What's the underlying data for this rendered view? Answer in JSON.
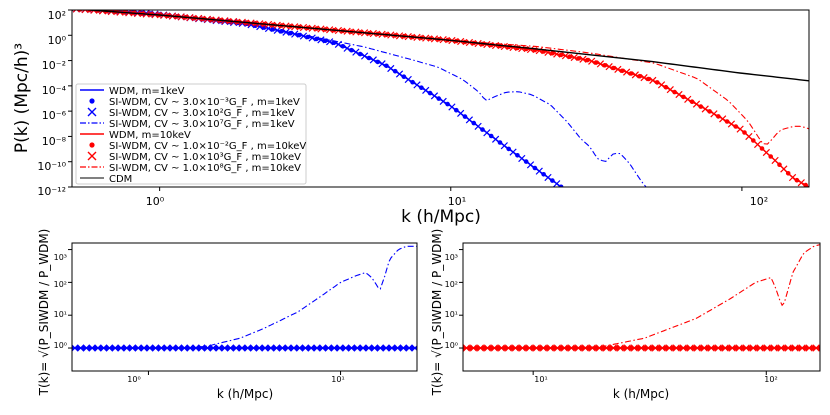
{
  "chart_data": [
    {
      "type": "line",
      "panel": "top",
      "title": "",
      "xlabel": "k (h/Mpc)",
      "ylabel": "P(k) (Mpc/h)³",
      "xscale": "log",
      "yscale": "log",
      "xlim": [
        0.5,
        170
      ],
      "ylim_exp": [
        -12,
        2
      ],
      "x_ticks": [
        {
          "v": 1,
          "label": "10⁰"
        },
        {
          "v": 10,
          "label": "10¹"
        },
        {
          "v": 100,
          "label": "10²"
        }
      ],
      "y_ticks": [
        {
          "e": 2,
          "label": "10²"
        },
        {
          "e": 0,
          "label": "10⁰"
        },
        {
          "e": -2,
          "label": "10⁻²"
        },
        {
          "e": -4,
          "label": "10⁻⁴"
        },
        {
          "e": -6,
          "label": "10⁻⁶"
        },
        {
          "e": -8,
          "label": "10⁻⁸"
        },
        {
          "e": -10,
          "label": "10⁻¹⁰"
        },
        {
          "e": -12,
          "label": "10⁻¹²"
        }
      ],
      "legend_position": "center-left",
      "series": [
        {
          "name": "WDM, m=1keV",
          "color": "#0000ff",
          "style": "solid",
          "marker": "none",
          "points": [
            [
              0.5,
              2.1
            ],
            [
              0.9,
              1.75
            ],
            [
              2,
              0.9
            ],
            [
              4,
              -0.6
            ],
            [
              6,
              -2.4
            ],
            [
              10,
              -5.6
            ],
            [
              15,
              -8.6
            ],
            [
              20,
              -10.7
            ],
            [
              25,
              -12.3
            ]
          ]
        },
        {
          "name": "SI-WDM, CV ~ 3.0×10⁻³G_F , m=1keV",
          "color": "#0000ff",
          "style": "none",
          "marker": "dot",
          "points": [
            [
              0.5,
              2.1
            ],
            [
              0.9,
              1.75
            ],
            [
              2,
              0.9
            ],
            [
              4,
              -0.6
            ],
            [
              6,
              -2.4
            ],
            [
              10,
              -5.6
            ],
            [
              15,
              -8.6
            ],
            [
              20,
              -10.7
            ],
            [
              25,
              -12.3
            ]
          ]
        },
        {
          "name": "SI-WDM, CV ~ 3.0×10²G_F , m=1keV",
          "color": "#0000ff",
          "style": "none",
          "marker": "x",
          "points": [
            [
              0.5,
              2.1
            ],
            [
              0.9,
              1.75
            ],
            [
              2,
              0.9
            ],
            [
              4,
              -0.6
            ],
            [
              6,
              -2.4
            ],
            [
              10,
              -5.6
            ],
            [
              15,
              -8.6
            ],
            [
              20,
              -10.7
            ],
            [
              25,
              -12.3
            ]
          ]
        },
        {
          "name": "SI-WDM, CV ~ 3.0×10⁷G_F , m=1keV",
          "color": "#0000ff",
          "style": "dashdot",
          "marker": "none",
          "points": [
            [
              0.5,
              2.1
            ],
            [
              1,
              1.65
            ],
            [
              2,
              0.9
            ],
            [
              3,
              0.1
            ],
            [
              5,
              -0.9
            ],
            [
              7,
              -1.8
            ],
            [
              9,
              -2.5
            ],
            [
              11,
              -3.5
            ],
            [
              12.5,
              -4.5
            ],
            [
              13.2,
              -5.2
            ],
            [
              14,
              -4.9
            ],
            [
              15.5,
              -4.5
            ],
            [
              17,
              -4.45
            ],
            [
              19,
              -4.7
            ],
            [
              22,
              -5.5
            ],
            [
              25,
              -6.8
            ],
            [
              28,
              -8.2
            ],
            [
              30,
              -8.8
            ],
            [
              32,
              -9.8
            ],
            [
              34,
              -10.0
            ],
            [
              36,
              -9.4
            ],
            [
              38,
              -9.3
            ],
            [
              41,
              -10.1
            ],
            [
              45,
              -11.5
            ],
            [
              48,
              -12.3
            ]
          ]
        },
        {
          "name": "WDM, m=10keV",
          "color": "#ff0000",
          "style": "solid",
          "marker": "none",
          "points": [
            [
              0.5,
              2.1
            ],
            [
              1,
              1.6
            ],
            [
              2,
              1.0
            ],
            [
              4,
              0.4
            ],
            [
              6,
              0.05
            ],
            [
              10,
              -0.4
            ],
            [
              20,
              -1.2
            ],
            [
              30,
              -2.0
            ],
            [
              50,
              -3.6
            ],
            [
              80,
              -6.2
            ],
            [
              100,
              -7.5
            ],
            [
              130,
              -9.9
            ],
            [
              150,
              -11.3
            ],
            [
              170,
              -12.0
            ]
          ]
        },
        {
          "name": "SI-WDM, CV ~ 1.0×10⁻²G_F , m=10keV",
          "color": "#ff0000",
          "style": "none",
          "marker": "dot",
          "points": [
            [
              0.5,
              2.1
            ],
            [
              1,
              1.6
            ],
            [
              2,
              1.0
            ],
            [
              4,
              0.4
            ],
            [
              6,
              0.05
            ],
            [
              10,
              -0.4
            ],
            [
              20,
              -1.2
            ],
            [
              30,
              -2.0
            ],
            [
              50,
              -3.6
            ],
            [
              80,
              -6.2
            ],
            [
              100,
              -7.5
            ],
            [
              130,
              -9.9
            ],
            [
              150,
              -11.3
            ],
            [
              170,
              -12.0
            ]
          ]
        },
        {
          "name": "SI-WDM, CV ~ 1.0×10³G_F , m=10keV",
          "color": "#ff0000",
          "style": "none",
          "marker": "x",
          "points": [
            [
              0.5,
              2.1
            ],
            [
              1,
              1.6
            ],
            [
              2,
              1.0
            ],
            [
              4,
              0.4
            ],
            [
              6,
              0.05
            ],
            [
              10,
              -0.4
            ],
            [
              20,
              -1.2
            ],
            [
              30,
              -2.0
            ],
            [
              50,
              -3.6
            ],
            [
              80,
              -6.2
            ],
            [
              100,
              -7.5
            ],
            [
              130,
              -9.9
            ],
            [
              150,
              -11.3
            ],
            [
              170,
              -12.0
            ]
          ]
        },
        {
          "name": "SI-WDM, CV ~ 1.0×10⁸G_F , m=10keV",
          "color": "#ff0000",
          "style": "dashdot",
          "marker": "none",
          "points": [
            [
              0.5,
              2.1
            ],
            [
              1,
              1.6
            ],
            [
              2,
              1.0
            ],
            [
              5,
              0.25
            ],
            [
              10,
              -0.4
            ],
            [
              20,
              -0.9
            ],
            [
              30,
              -1.4
            ],
            [
              50,
              -2.2
            ],
            [
              70,
              -3.4
            ],
            [
              90,
              -5.2
            ],
            [
              105,
              -6.8
            ],
            [
              115,
              -8.2
            ],
            [
              120,
              -8.8
            ],
            [
              125,
              -8.4
            ],
            [
              135,
              -7.5
            ],
            [
              150,
              -7.2
            ],
            [
              160,
              -7.2
            ],
            [
              170,
              -7.4
            ]
          ]
        },
        {
          "name": "CDM",
          "color": "#000000",
          "style": "solid",
          "marker": "none",
          "points": [
            [
              0.5,
              2.1
            ],
            [
              1,
              1.6
            ],
            [
              2,
              1.0
            ],
            [
              4,
              0.4
            ],
            [
              10,
              -0.4
            ],
            [
              20,
              -1.1
            ],
            [
              50,
              -2.1
            ],
            [
              100,
              -3.0
            ],
            [
              170,
              -3.6
            ]
          ]
        }
      ]
    },
    {
      "type": "line",
      "panel": "bottom-left",
      "xlabel": "k (h/Mpc)",
      "ylabel": "T(k)= √(P_SIWDM / P_WDM)",
      "xscale": "log",
      "yscale": "log",
      "xlim": [
        0.4,
        25
      ],
      "ylim_exp": [
        -0.7,
        3.2
      ],
      "x_ticks": [
        {
          "v": 1,
          "label": "10⁰"
        },
        {
          "v": 10,
          "label": "10¹"
        }
      ],
      "y_ticks": [
        {
          "e": 0,
          "label": "10⁰"
        },
        {
          "e": 1,
          "label": "10¹"
        },
        {
          "e": 2,
          "label": "10²"
        },
        {
          "e": 3,
          "label": "10³"
        }
      ],
      "series": [
        {
          "name": "SI-WDM, CV ~ 3.0×10⁻³G_F , m=1keV",
          "color": "#0000ff",
          "style": "solid",
          "marker": "dot",
          "value": 1
        },
        {
          "name": "SI-WDM, CV ~ 3.0×10²G_F , m=1keV",
          "color": "#0000ff",
          "style": "none",
          "marker": "x",
          "value": 1
        },
        {
          "name": "SI-WDM, CV ~ 3.0×10⁷G_F , m=1keV",
          "color": "#0000ff",
          "style": "dashdot",
          "marker": "none",
          "points": [
            [
              0.4,
              0
            ],
            [
              1.5,
              0
            ],
            [
              2,
              0.05
            ],
            [
              3,
              0.3
            ],
            [
              4,
              0.6
            ],
            [
              6,
              1.1
            ],
            [
              8,
              1.6
            ],
            [
              10,
              2.0
            ],
            [
              12,
              2.2
            ],
            [
              13.5,
              2.3
            ],
            [
              14.5,
              2.15
            ],
            [
              15.5,
              1.9
            ],
            [
              16,
              1.75
            ],
            [
              17,
              2.2
            ],
            [
              18,
              2.7
            ],
            [
              20,
              3.0
            ],
            [
              22,
              3.1
            ],
            [
              25,
              3.1
            ]
          ]
        }
      ]
    },
    {
      "type": "line",
      "panel": "bottom-right",
      "xlabel": "k (h/Mpc)",
      "ylabel": "T(k)= √(P_SIWDM / P_WDM)",
      "xscale": "log",
      "yscale": "log",
      "xlim": [
        5,
        170
      ],
      "ylim_exp": [
        -0.7,
        3.2
      ],
      "x_ticks": [
        {
          "v": 10,
          "label": "10¹"
        },
        {
          "v": 100,
          "label": "10²"
        }
      ],
      "y_ticks": [
        {
          "e": 0,
          "label": "10⁰"
        },
        {
          "e": 1,
          "label": "10¹"
        },
        {
          "e": 2,
          "label": "10²"
        },
        {
          "e": 3,
          "label": "10³"
        }
      ],
      "series": [
        {
          "name": "SI-WDM, CV ~ 1.0×10⁻²G_F , m=10keV",
          "color": "#ff0000",
          "style": "solid",
          "marker": "dot",
          "value": 1
        },
        {
          "name": "SI-WDM, CV ~ 1.0×10³G_F , m=10keV",
          "color": "#ff0000",
          "style": "none",
          "marker": "x",
          "value": 1
        },
        {
          "name": "SI-WDM, CV ~ 1.0×10⁸G_F , m=10keV",
          "color": "#ff0000",
          "style": "dashdot",
          "marker": "none",
          "points": [
            [
              5,
              0
            ],
            [
              15,
              0
            ],
            [
              20,
              0.05
            ],
            [
              30,
              0.3
            ],
            [
              50,
              0.9
            ],
            [
              70,
              1.5
            ],
            [
              90,
              2.0
            ],
            [
              105,
              2.15
            ],
            [
              110,
              1.8
            ],
            [
              115,
              1.4
            ],
            [
              118,
              1.25
            ],
            [
              122,
              1.6
            ],
            [
              130,
              2.3
            ],
            [
              145,
              2.9
            ],
            [
              160,
              3.1
            ],
            [
              170,
              3.15
            ]
          ]
        }
      ]
    }
  ]
}
